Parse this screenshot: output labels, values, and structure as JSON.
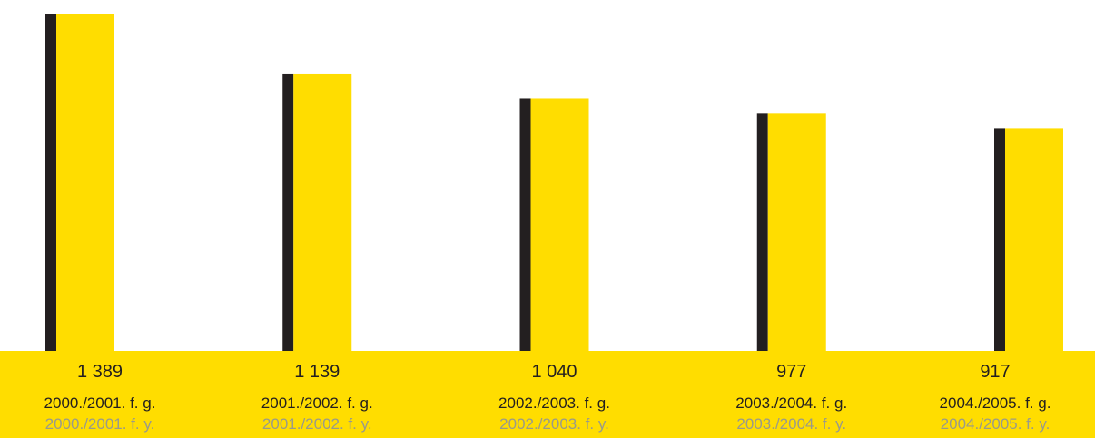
{
  "chart_data": {
    "type": "bar",
    "categories": [
      "2000./2001. f. g.",
      "2001./2002. f. g.",
      "2002./2003. f. g.",
      "2003./2004. f. g.",
      "2004./2005. f. g."
    ],
    "categories_secondary": [
      "2000./2001. f. y.",
      "2001./2002. f. y.",
      "2002./2003. f. y.",
      "2003./2004. f. y.",
      "2004./2005. f. y."
    ],
    "values": [
      1389,
      1139,
      1040,
      977,
      917
    ],
    "value_labels": [
      "1 389",
      "1 139",
      "1 040",
      "977",
      "917"
    ],
    "title": "",
    "xlabel": "",
    "ylabel": "",
    "ylim": [
      0,
      1389
    ],
    "grid": false,
    "legend": "none",
    "colors": {
      "bar": "#FFDD00",
      "bar_shadow": "#231F20",
      "band": "#FFDD00",
      "text_primary": "#231F20",
      "text_secondary": "#9A9A8A"
    }
  }
}
